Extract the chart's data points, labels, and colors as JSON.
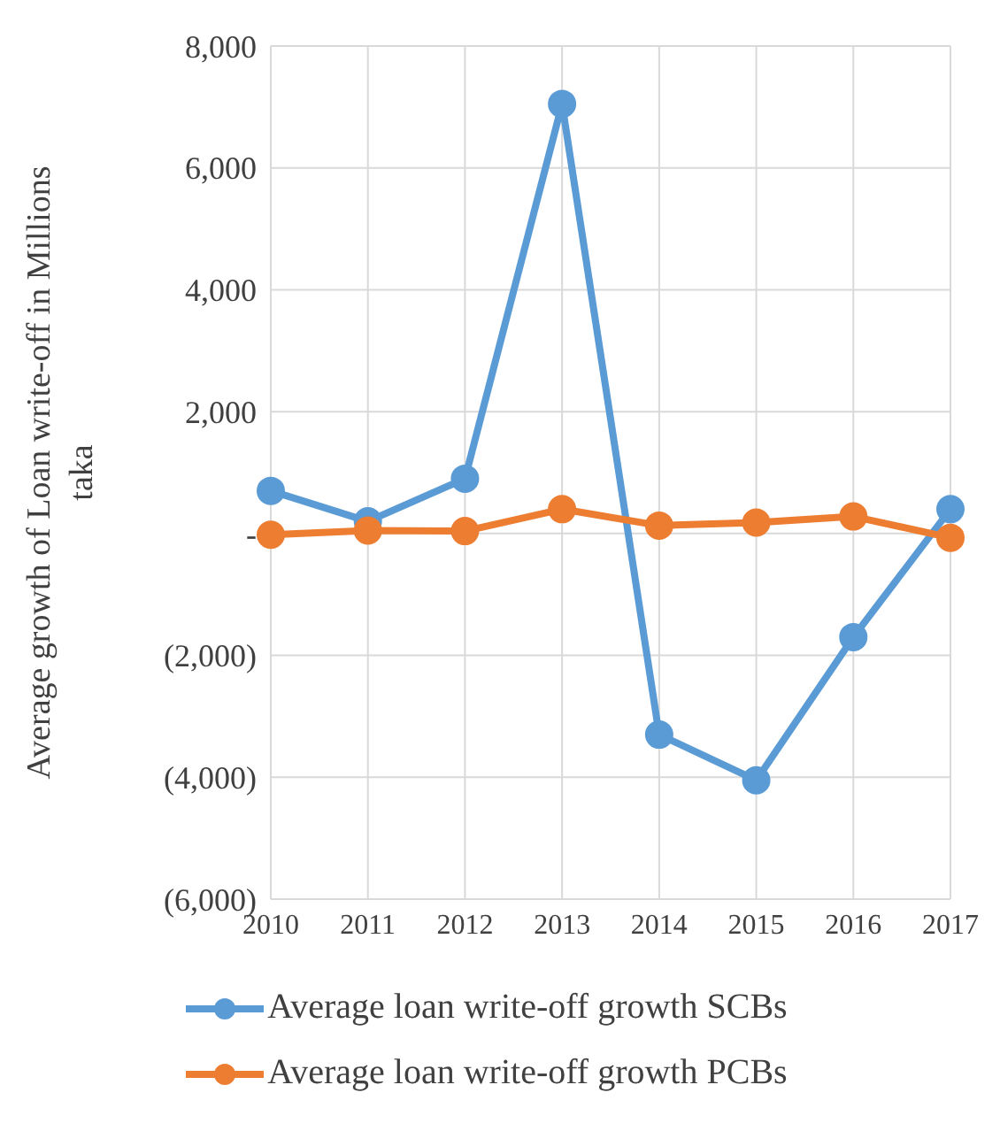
{
  "chart_data": {
    "type": "line",
    "ylabel": "Average growth of Loan write-off in Millions taka",
    "categories": [
      "2010",
      "2011",
      "2012",
      "2013",
      "2014",
      "2015",
      "2016",
      "2017"
    ],
    "series": [
      {
        "name": "Average loan write-off growth SCBs",
        "color": "#5b9bd5",
        "values": [
          700,
          200,
          900,
          7050,
          -3300,
          -4050,
          -1700,
          400
        ]
      },
      {
        "name": "Average loan write-off growth PCBs",
        "color": "#ed7d31",
        "values": [
          -20,
          50,
          40,
          400,
          130,
          180,
          280,
          -70
        ]
      }
    ],
    "ylim": [
      -6000,
      8000
    ],
    "yticks": [
      {
        "value": -6000,
        "label": "(6,000)"
      },
      {
        "value": -4000,
        "label": "(4,000)"
      },
      {
        "value": -2000,
        "label": "(2,000)"
      },
      {
        "value": 0,
        "label": "-"
      },
      {
        "value": 2000,
        "label": "2,000"
      },
      {
        "value": 4000,
        "label": "4,000"
      },
      {
        "value": 6000,
        "label": "6,000"
      },
      {
        "value": 8000,
        "label": "8,000"
      }
    ],
    "grid": true,
    "legend": "bottom",
    "marker": "circle",
    "line_style": "solid"
  }
}
